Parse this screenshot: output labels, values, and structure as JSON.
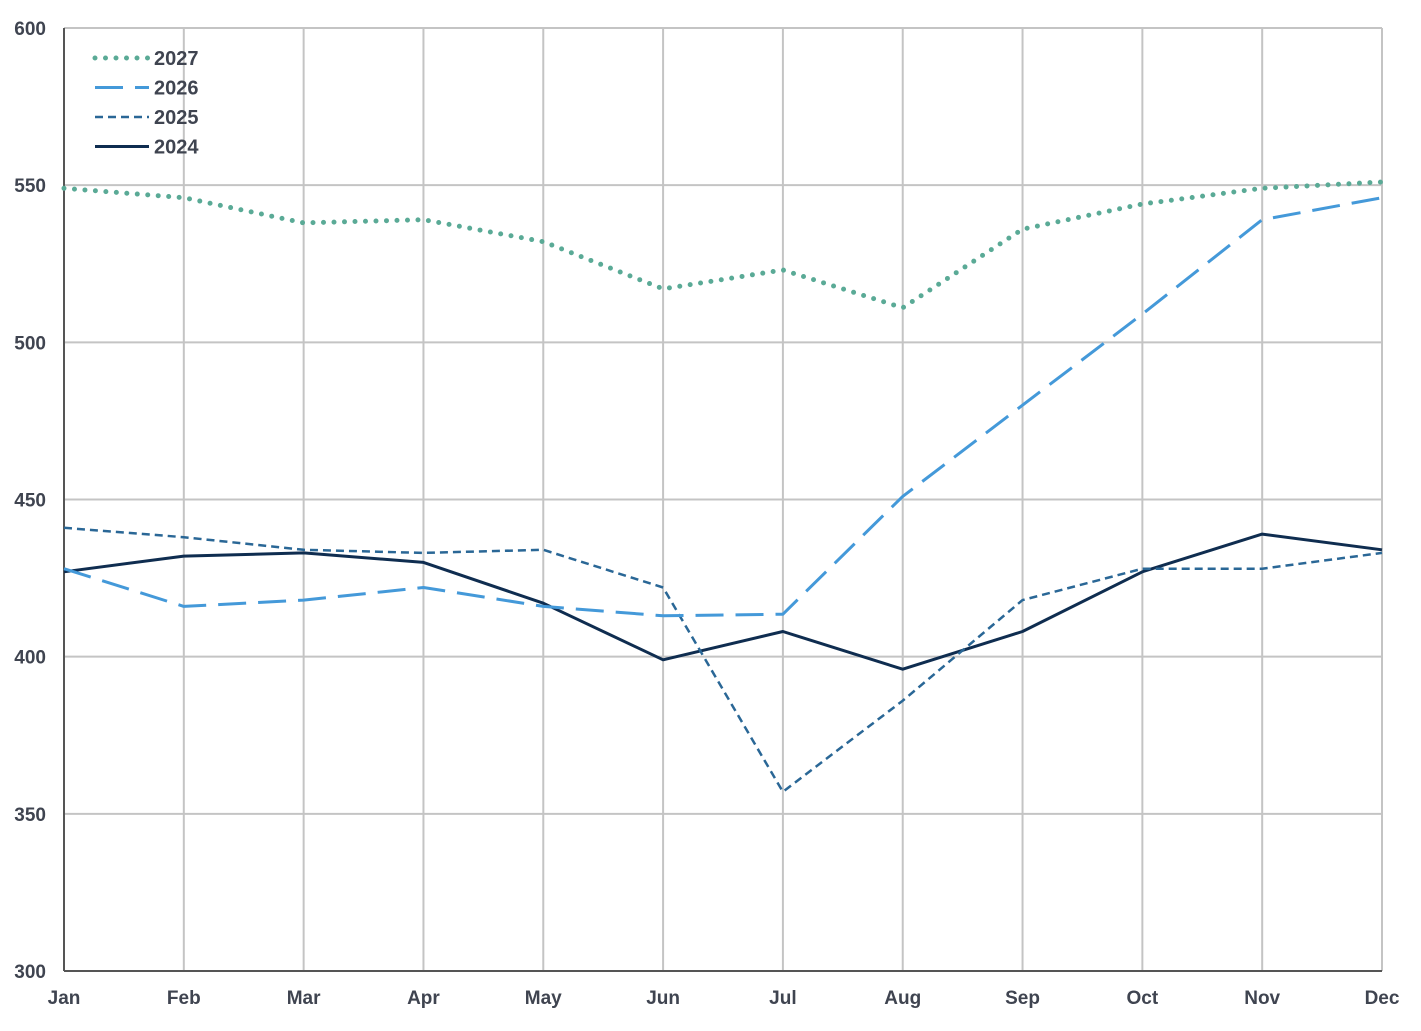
{
  "chart_data": {
    "type": "line",
    "categories": [
      "Jan",
      "Feb",
      "Mar",
      "Apr",
      "May",
      "Jun",
      "Jul",
      "Aug",
      "Sep",
      "Oct",
      "Nov",
      "Dec"
    ],
    "ylim": [
      300,
      600
    ],
    "yticks": [
      300,
      350,
      400,
      450,
      500,
      550,
      600
    ],
    "grid": true,
    "legend_position": "top-left",
    "series": [
      {
        "name": "2027",
        "color": "#5aaa96",
        "style": "dotted",
        "values": [
          549,
          546,
          538,
          539,
          532,
          517,
          523,
          511,
          536,
          544,
          549,
          551
        ]
      },
      {
        "name": "2026",
        "color": "#4499d9",
        "style": "dashed",
        "values": [
          428,
          416,
          418,
          422,
          416,
          413,
          413.5,
          451,
          480,
          509,
          539,
          546
        ]
      },
      {
        "name": "2025",
        "color": "#2a6796",
        "style": "short-dashed",
        "values": [
          441,
          438,
          434,
          433,
          434,
          422,
          357,
          386,
          418,
          428,
          428,
          433
        ]
      },
      {
        "name": "2024",
        "color": "#0f2d50",
        "style": "solid",
        "values": [
          427,
          432,
          433,
          430,
          417,
          399,
          408,
          396,
          408,
          427,
          439,
          434
        ]
      }
    ]
  }
}
